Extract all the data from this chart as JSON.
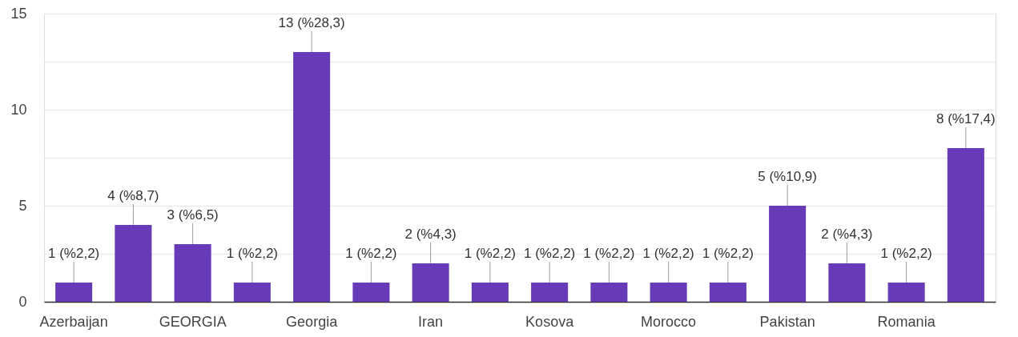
{
  "chart_data": {
    "type": "bar",
    "categories": [
      "Azerbaijan",
      null,
      "GEORGIA",
      null,
      "Georgia",
      null,
      "Iran",
      null,
      "Kosova",
      null,
      "Morocco",
      null,
      "Pakistan",
      null,
      "Romania",
      null
    ],
    "values": [
      1,
      4,
      3,
      1,
      13,
      1,
      2,
      1,
      1,
      1,
      1,
      1,
      5,
      2,
      1,
      8
    ],
    "value_labels": [
      "1 (%2,2)",
      "4 (%8,7)",
      "3 (%6,5)",
      "1 (%2,2)",
      "13 (%28,3)",
      "1 (%2,2)",
      "2 (%4,3)",
      "1 (%2,2)",
      "1 (%2,2)",
      "1 (%2,2)",
      "1 (%2,2)",
      "1 (%2,2)",
      "5 (%10,9)",
      "2 (%4,3)",
      "1 (%2,2)",
      "8 (%17,4)"
    ],
    "color": "#673ab7",
    "ylim": [
      0,
      15
    ],
    "yticks": [
      0,
      {
        "value": 2.5,
        "label": null
      },
      5,
      {
        "value": 7.5,
        "label": null
      },
      10,
      {
        "value": 12.5,
        "label": null
      },
      15
    ],
    "grid": "y"
  }
}
